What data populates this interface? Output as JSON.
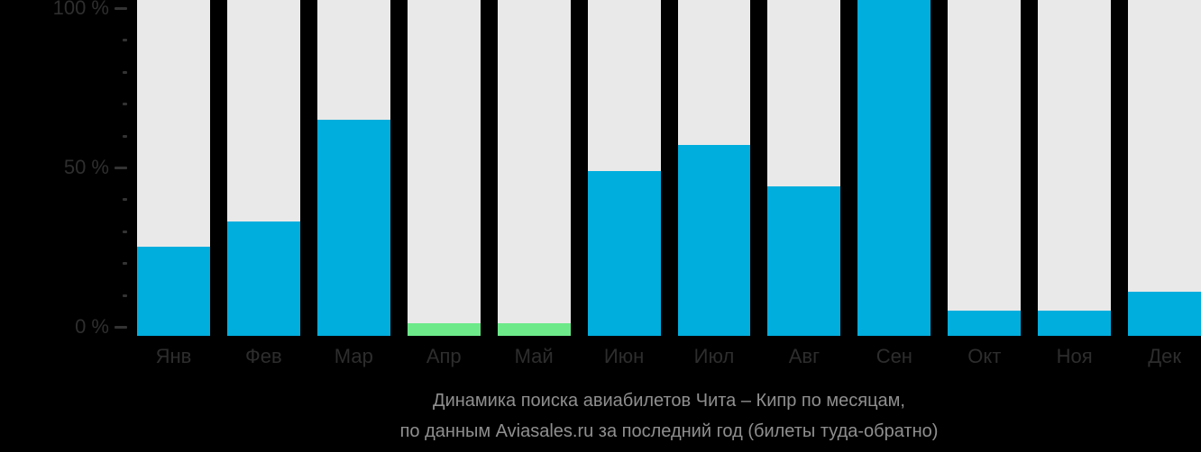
{
  "chart_data": {
    "type": "bar",
    "categories": [
      "Янв",
      "Фев",
      "Мар",
      "Апр",
      "Май",
      "Июн",
      "Июл",
      "Авг",
      "Сен",
      "Окт",
      "Ноя",
      "Дек"
    ],
    "values": [
      25,
      33,
      65,
      1,
      1,
      49,
      57,
      44,
      100,
      5,
      5,
      11
    ],
    "bar_colors": [
      "#00aedd",
      "#00aedd",
      "#00aedd",
      "#6de98a",
      "#6de98a",
      "#00aedd",
      "#00aedd",
      "#00aedd",
      "#00aedd",
      "#00aedd",
      "#00aedd",
      "#00aedd"
    ],
    "title_lines": [
      "Динамика поиска авиабилетов Чита – Кипр по месяцам,",
      "по данным Aviasales.ru за последний год (билеты туда-обратно)"
    ],
    "y_axis": {
      "ylim": [
        0,
        100
      ],
      "labeled_ticks": [
        {
          "value": 0,
          "label": "0 %"
        },
        {
          "value": 50,
          "label": "50 %"
        },
        {
          "value": 100,
          "label": "100 %"
        }
      ],
      "minor_tick_step": 10
    },
    "legend": "none",
    "grid": false
  },
  "colors": {
    "background": "#000000",
    "bar_primary": "#00aedd",
    "bar_highlight": "#6de98a",
    "bar_track": "#e9e9e9",
    "axis_text": "#2e2e2e",
    "tick": "#333333",
    "caption_text": "#8f8f8f"
  }
}
